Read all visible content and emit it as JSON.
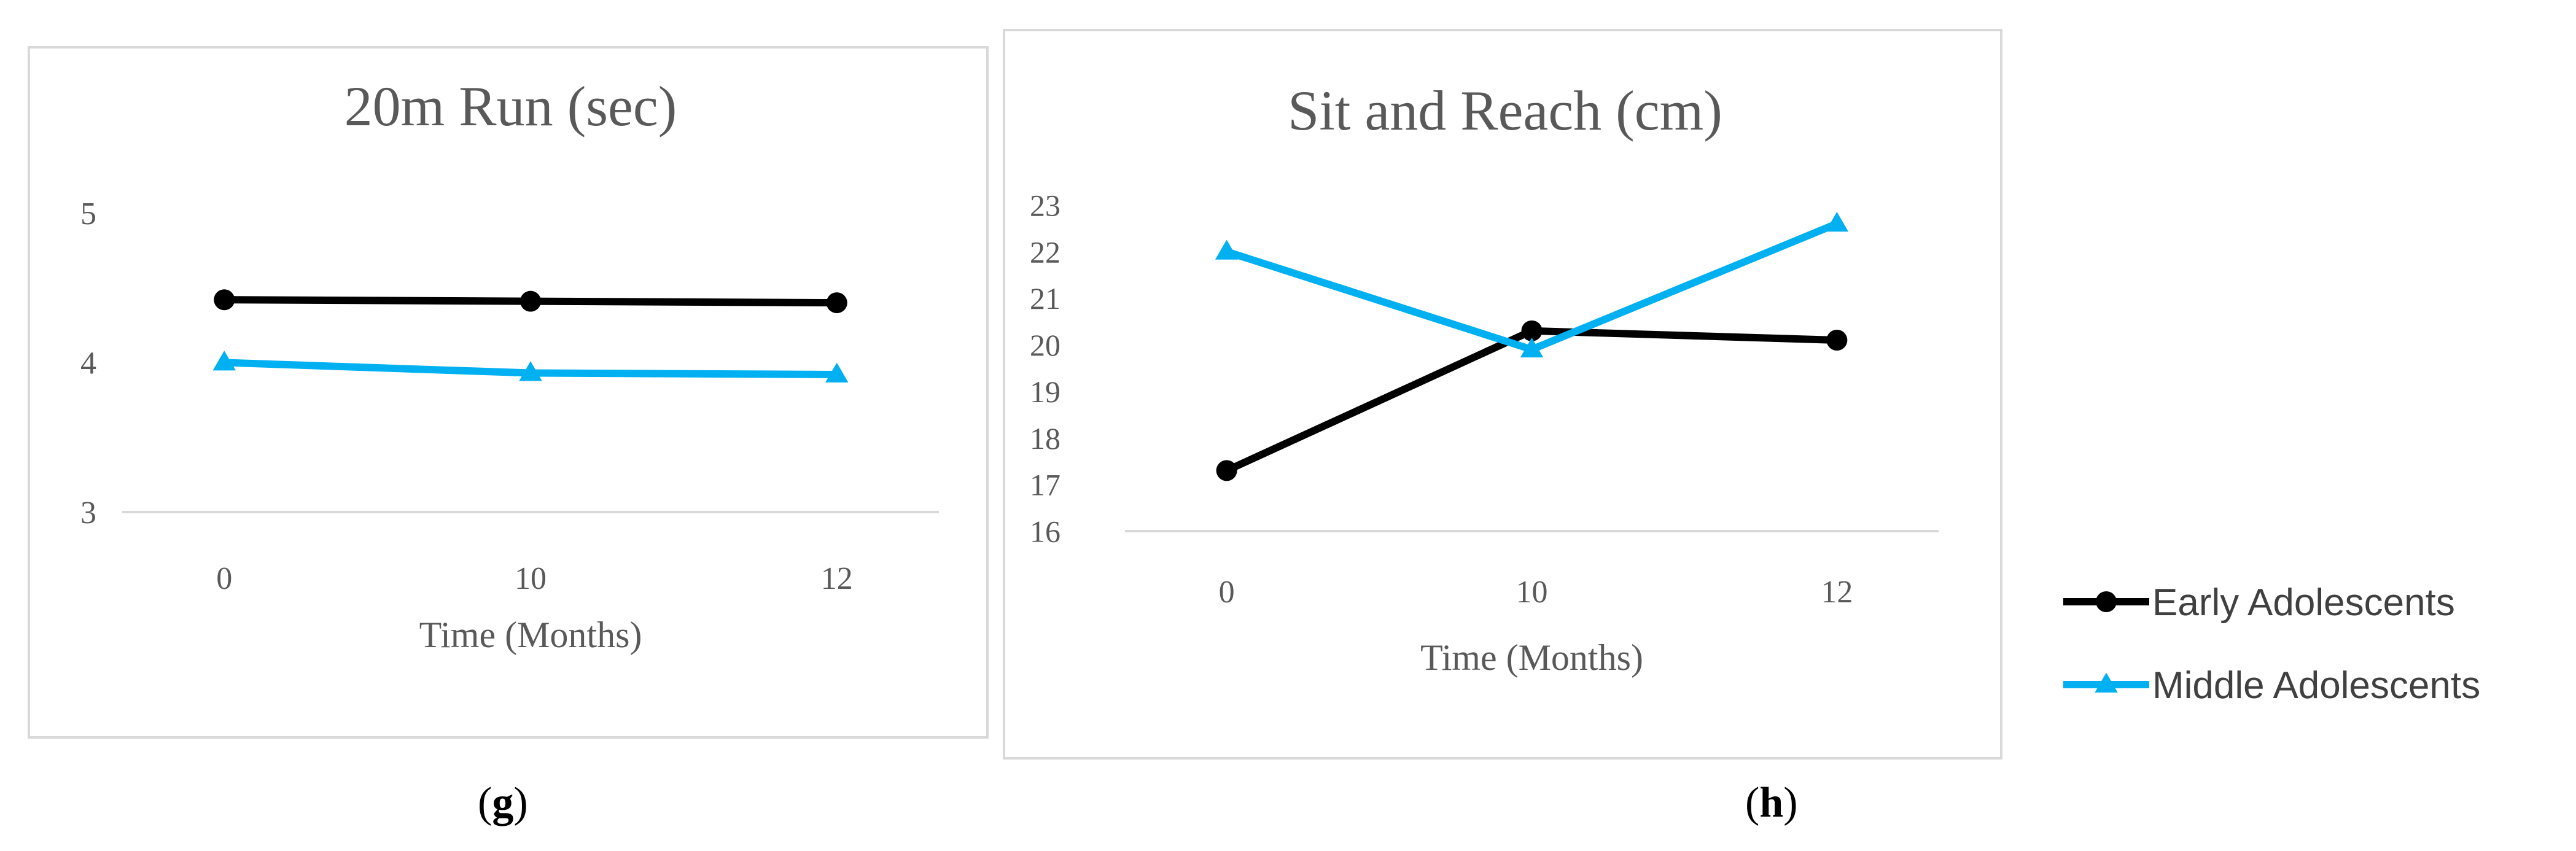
{
  "chart_data": [
    {
      "type": "line",
      "title": "20m Run (sec)",
      "xlabel": "Time (Months)",
      "ylabel": "",
      "categories": [
        "0",
        "10",
        "12"
      ],
      "ylim": [
        3,
        5
      ],
      "yticks": [
        "3",
        "4",
        "5"
      ],
      "grid": false,
      "legend": "right (shared)",
      "series": [
        {
          "name": "Early Adolescents",
          "values": [
            4.42,
            4.41,
            4.4
          ],
          "color": "#000000",
          "marker": "circle"
        },
        {
          "name": "Middle Adolescents",
          "values": [
            4.0,
            3.93,
            3.92
          ],
          "color": "#00b0f0",
          "marker": "triangle"
        }
      ],
      "caption_open": "(",
      "caption_label": "g",
      "caption_close": ")"
    },
    {
      "type": "line",
      "title": "Sit and Reach (cm)",
      "xlabel": "Time (Months)",
      "ylabel": "",
      "categories": [
        "0",
        "10",
        "12"
      ],
      "ylim": [
        16,
        23
      ],
      "yticks": [
        "16",
        "17",
        "18",
        "19",
        "20",
        "21",
        "22",
        "23"
      ],
      "grid": false,
      "legend": "right (shared)",
      "series": [
        {
          "name": "Early Adolescents",
          "values": [
            17.3,
            20.3,
            20.1
          ],
          "color": "#000000",
          "marker": "circle"
        },
        {
          "name": "Middle Adolescents",
          "values": [
            22.0,
            19.9,
            22.6
          ],
          "color": "#00b0f0",
          "marker": "triangle"
        }
      ],
      "caption_open": "(",
      "caption_label": "h",
      "caption_close": ")"
    }
  ],
  "legend": [
    {
      "label": "Early Adolescents",
      "color": "#000000",
      "marker": "circle"
    },
    {
      "label": "Middle Adolescents",
      "color": "#00b0f0",
      "marker": "triangle"
    }
  ]
}
